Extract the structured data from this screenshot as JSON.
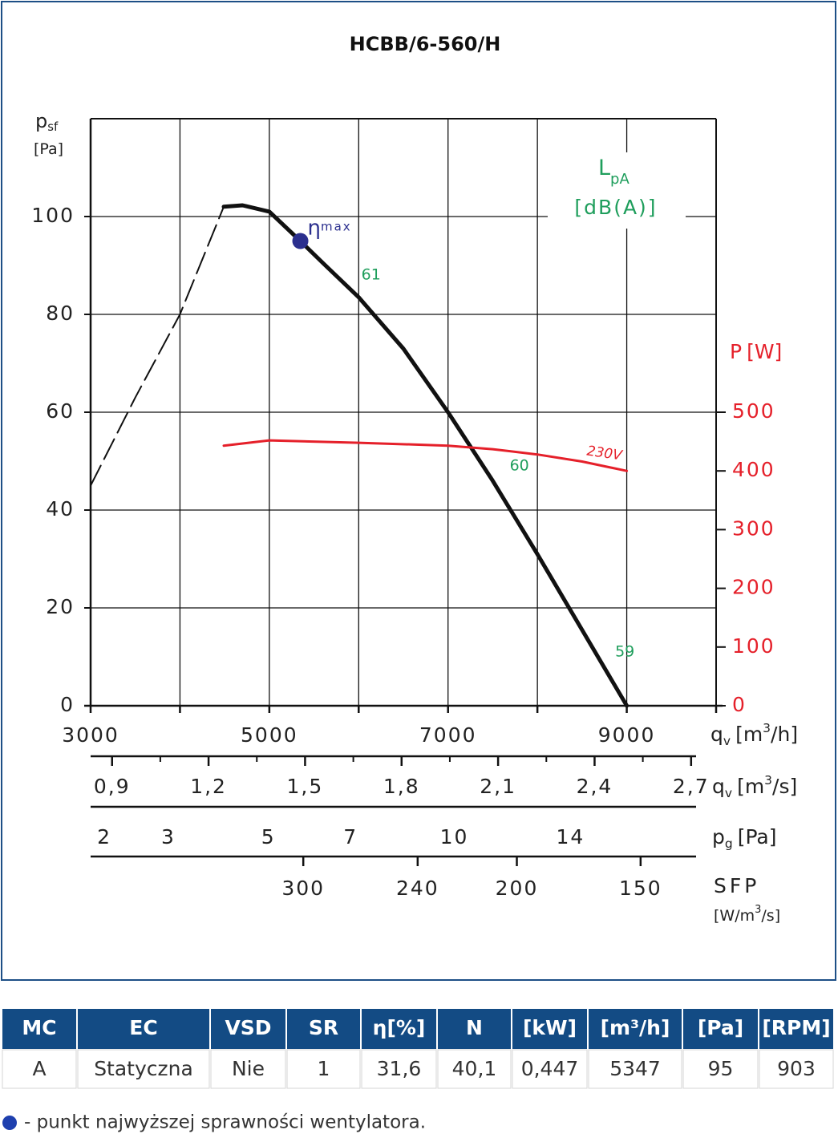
{
  "chart_data": {
    "type": "line",
    "title": "HCBB/6-560/H",
    "ylabel": {
      "main": "p",
      "sub": "sf",
      "unit": "[Pa]"
    },
    "y2label": {
      "main": "P",
      "unit": "[W]"
    },
    "xlabel": {
      "main": "q",
      "sub": "v",
      "unit": "[m",
      "sup": "3",
      "unit2": "/h]"
    },
    "legend_box": {
      "main": "L",
      "sub": "pA",
      "unit": "[dB(A)]",
      "color": "#1f9e5c"
    },
    "xlim": [
      3000,
      10000
    ],
    "xticks": [
      3000,
      5000,
      7000,
      9000
    ],
    "x_minor_ticks": [
      4000,
      6000,
      8000,
      10000
    ],
    "ylim": [
      0,
      120
    ],
    "yticks": [
      0,
      20,
      40,
      60,
      80,
      100
    ],
    "y_minor_ticks": [
      120
    ],
    "y2lim": [
      0,
      1000
    ],
    "y2ticks": [
      0,
      100,
      200,
      300,
      400,
      500
    ],
    "y2color": "#e5202a",
    "grid": true,
    "series": [
      {
        "color": "#111111",
        "dashed": true,
        "x": [
          3000,
          3500,
          4000,
          4490
        ],
        "values": [
          45,
          63,
          80,
          102
        ]
      },
      {
        "color": "#111111",
        "x": [
          4490,
          4700,
          5000,
          5347,
          5600,
          6000,
          6500,
          7000,
          7500,
          8000,
          8500,
          9000
        ],
        "values": [
          102,
          102.3,
          101,
          95,
          90.5,
          83.5,
          73,
          60,
          46,
          31,
          15.5,
          0
        ]
      },
      {
        "name": "230V",
        "axis": "y2",
        "color": "#e5202a",
        "x": [
          4490,
          5000,
          6000,
          7000,
          7500,
          8000,
          8500,
          9000
        ],
        "values": [
          443,
          452,
          448,
          443,
          437,
          428,
          416,
          400
        ]
      }
    ],
    "eta_max": {
      "symbol": "η",
      "sub": "max",
      "x": 5347,
      "y": 95,
      "color": "#2b2f8e"
    },
    "annotations": [
      {
        "text": "61",
        "x": 6030,
        "y": 88
      },
      {
        "text": "60",
        "x": 7690,
        "y": 49
      },
      {
        "text": "59",
        "x": 8870,
        "y": 11
      }
    ],
    "scales": [
      {
        "label": {
          "main": "q",
          "sub": "v",
          "unit": "[m",
          "sup": "3",
          "unit2": "/s]"
        },
        "ticks": [
          {
            "value": 0.9,
            "label": "0,9"
          },
          {
            "value": 1.2,
            "label": "1,2"
          },
          {
            "value": 1.5,
            "label": "1,5"
          },
          {
            "value": 1.8,
            "label": "1,8"
          },
          {
            "value": 2.1,
            "label": "2,1"
          },
          {
            "value": 2.4,
            "label": "2,4"
          },
          {
            "value": 2.7,
            "label": "2,7"
          }
        ]
      },
      {
        "label": {
          "main": "p",
          "sub": "g",
          "unit": "[Pa]"
        },
        "ticks": [
          {
            "value": 2,
            "at_qv": 3153
          },
          {
            "value": 3,
            "at_qv": 3870
          },
          {
            "value": 5,
            "at_qv": 4990
          },
          {
            "value": 7,
            "at_qv": 5910
          },
          {
            "value": 10,
            "at_qv": 7070
          },
          {
            "value": 14,
            "at_qv": 8370
          }
        ]
      },
      {
        "label": {
          "main": "SFP",
          "unit": "[W/m",
          "sup": "3",
          "unit2": "/s]"
        },
        "ticks": [
          {
            "value": 300,
            "at_qv": 5380
          },
          {
            "value": 240,
            "at_qv": 6660
          },
          {
            "value": 200,
            "at_qv": 7770
          },
          {
            "value": 150,
            "at_qv": 9155
          }
        ]
      }
    ]
  },
  "table": {
    "header": [
      "MC",
      "EC",
      "VSD",
      "SR",
      "η[%]",
      "N",
      "[kW]",
      "[m³/h]",
      "[Pa]",
      "[RPM]"
    ],
    "row": [
      "A",
      "Statyczna",
      "Nie",
      "1",
      "31,6",
      "40,1",
      "0,447",
      "5347",
      "95",
      "903"
    ]
  },
  "footnote": "- punkt najwyższej sprawności wentylatora."
}
